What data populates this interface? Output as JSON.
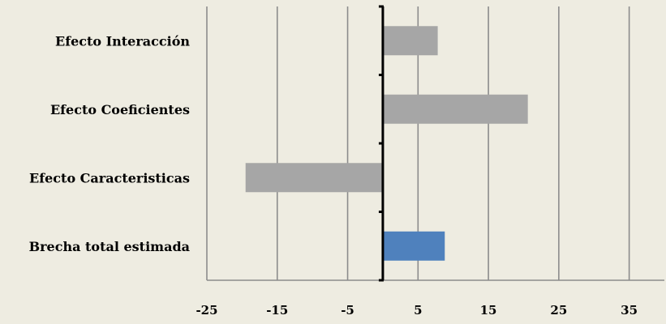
{
  "chart_data": {
    "type": "bar",
    "orientation": "horizontal",
    "title": "",
    "xlabel": "",
    "ylabel": "",
    "categories": [
      "Efecto Interacción",
      "Efecto Coeficientes",
      "Efecto Caracteristicas",
      "Brecha total estimada"
    ],
    "values": [
      7.8,
      20.6,
      -19.5,
      8.8
    ],
    "bar_colors": [
      "#a6a6a6",
      "#a6a6a6",
      "#a6a6a6",
      "#4f81bd"
    ],
    "xlim": [
      -25,
      40
    ],
    "xticks": [
      -25,
      -15,
      -5,
      5,
      15,
      25,
      35
    ],
    "tick_labels": [
      "-25",
      "-15",
      "-5",
      "5",
      "15",
      "25",
      "35"
    ],
    "grid": true,
    "legend": "none"
  },
  "colors": {
    "background": "#eeece1",
    "grid": "#8c8c8c",
    "axis": "#000000"
  }
}
